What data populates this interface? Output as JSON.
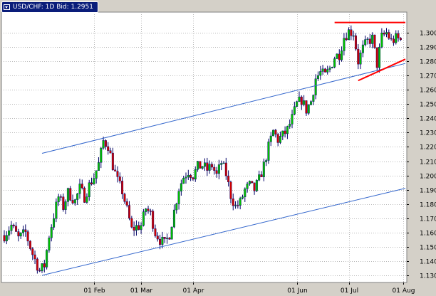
{
  "window": {
    "title": "USD/CHF: 1D Bid: 1.2951",
    "title_icon": "chevron-down-icon"
  },
  "colors": {
    "plot_background": "#ffffff",
    "frame_background": "#d4d0c8",
    "grid": "#b8b8b8",
    "bull": "#00c000",
    "bear": "#d00000",
    "wick": "#000066",
    "channel_line": "#3366cc",
    "pattern_line": "#ff0000"
  },
  "chart_data": {
    "type": "candlestick",
    "symbol": "USD/CHF",
    "timeframe": "1D",
    "price_type": "Bid",
    "last_price": 1.2951,
    "ylim": [
      1.125,
      1.3145
    ],
    "y_ticks": [
      "1.1300",
      "1.1400",
      "1.1500",
      "1.1600",
      "1.1700",
      "1.1800",
      "1.1900",
      "1.2000",
      "1.2100",
      "1.2200",
      "1.2300",
      "1.2400",
      "1.2500",
      "1.2600",
      "1.2700",
      "1.2800",
      "1.2900",
      "1.3000"
    ],
    "x_ticks": [
      {
        "label": "01 Feb",
        "bar": 38
      },
      {
        "label": "01 Mar",
        "bar": 58
      },
      {
        "label": "01 Apr",
        "bar": 80
      },
      {
        "label": "01 Jun",
        "bar": 124
      },
      {
        "label": "01 Jul",
        "bar": 146
      },
      {
        "label": "01 Aug",
        "bar": 169
      }
    ],
    "bar_count": 170,
    "grid": true,
    "channel_lines": [
      {
        "from": {
          "bar": 16,
          "y": 1.13
        },
        "to": {
          "bar": 170,
          "y": 1.191
        }
      },
      {
        "from": {
          "bar": 16,
          "y": 1.2155
        },
        "to": {
          "bar": 170,
          "y": 1.2785
        }
      }
    ],
    "pattern_lines": [
      {
        "from": {
          "bar": 140,
          "y": 1.3072
        },
        "to": {
          "bar": 170,
          "y": 1.3072
        }
      },
      {
        "from": {
          "bar": 150,
          "y": 1.2665
        },
        "to": {
          "bar": 170,
          "y": 1.2815
        }
      }
    ],
    "waypoints": [
      [
        0,
        1.158
      ],
      [
        3,
        1.165
      ],
      [
        6,
        1.156
      ],
      [
        9,
        1.16
      ],
      [
        12,
        1.145
      ],
      [
        15,
        1.133
      ],
      [
        17,
        1.137
      ],
      [
        19,
        1.158
      ],
      [
        21,
        1.172
      ],
      [
        23,
        1.185
      ],
      [
        25,
        1.178
      ],
      [
        27,
        1.188
      ],
      [
        30,
        1.182
      ],
      [
        32,
        1.191
      ],
      [
        34,
        1.185
      ],
      [
        36,
        1.193
      ],
      [
        38,
        1.199
      ],
      [
        40,
        1.208
      ],
      [
        42,
        1.224
      ],
      [
        44,
        1.221
      ],
      [
        46,
        1.207
      ],
      [
        48,
        1.196
      ],
      [
        50,
        1.189
      ],
      [
        52,
        1.176
      ],
      [
        54,
        1.162
      ],
      [
        56,
        1.164
      ],
      [
        58,
        1.165
      ],
      [
        60,
        1.177
      ],
      [
        62,
        1.173
      ],
      [
        64,
        1.16
      ],
      [
        66,
        1.155
      ],
      [
        68,
        1.152
      ],
      [
        70,
        1.159
      ],
      [
        72,
        1.175
      ],
      [
        74,
        1.191
      ],
      [
        76,
        1.199
      ],
      [
        78,
        1.203
      ],
      [
        80,
        1.2
      ],
      [
        82,
        1.206
      ],
      [
        84,
        1.207
      ],
      [
        86,
        1.204
      ],
      [
        88,
        1.207
      ],
      [
        90,
        1.2
      ],
      [
        92,
        1.209
      ],
      [
        94,
        1.201
      ],
      [
        96,
        1.186
      ],
      [
        98,
        1.178
      ],
      [
        100,
        1.181
      ],
      [
        102,
        1.19
      ],
      [
        104,
        1.193
      ],
      [
        106,
        1.19
      ],
      [
        108,
        1.197
      ],
      [
        110,
        1.207
      ],
      [
        112,
        1.22
      ],
      [
        114,
        1.231
      ],
      [
        116,
        1.225
      ],
      [
        118,
        1.228
      ],
      [
        120,
        1.232
      ],
      [
        122,
        1.24
      ],
      [
        124,
        1.25
      ],
      [
        126,
        1.253
      ],
      [
        128,
        1.246
      ],
      [
        130,
        1.252
      ],
      [
        132,
        1.268
      ],
      [
        134,
        1.272
      ],
      [
        136,
        1.27
      ],
      [
        138,
        1.275
      ],
      [
        140,
        1.283
      ],
      [
        142,
        1.285
      ],
      [
        144,
        1.297
      ],
      [
        146,
        1.301
      ],
      [
        148,
        1.3
      ],
      [
        150,
        1.28
      ],
      [
        152,
        1.289
      ],
      [
        154,
        1.294
      ],
      [
        156,
        1.296
      ],
      [
        158,
        1.278
      ],
      [
        160,
        1.297
      ],
      [
        162,
        1.3
      ],
      [
        164,
        1.294
      ],
      [
        166,
        1.296
      ],
      [
        168,
        1.295
      ]
    ]
  }
}
